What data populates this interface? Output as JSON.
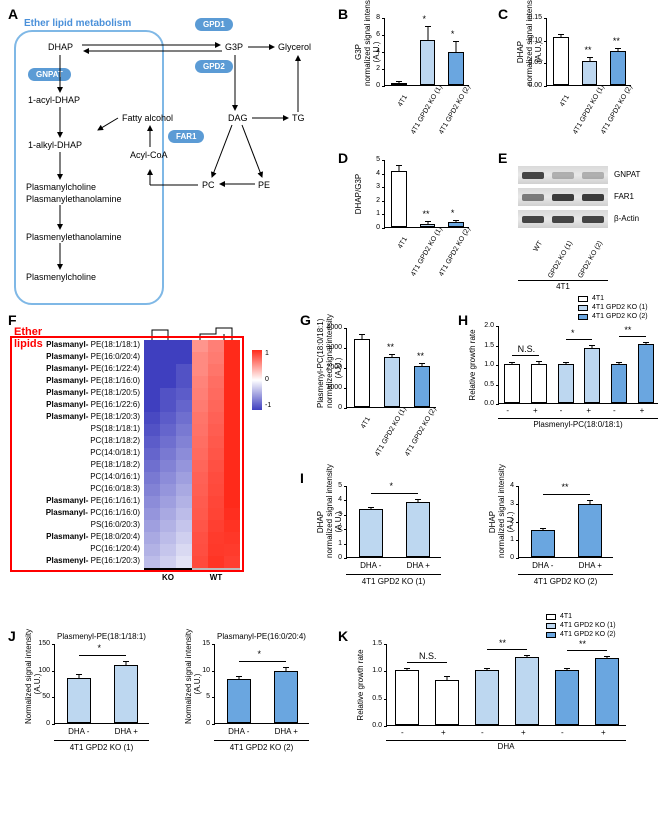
{
  "panel_labels": {
    "A": "A",
    "B": "B",
    "C": "C",
    "D": "D",
    "E": "E",
    "F": "F",
    "G": "G",
    "H": "H",
    "I": "I",
    "J": "J",
    "K": "K"
  },
  "colors": {
    "white": "#ffffff",
    "ko1": "#bdd7f0",
    "ko2": "#6aa6e0",
    "axis": "#000000",
    "enzyme": "#5b9bd5",
    "ether_border": "#7fb8e6",
    "ether_title": "#4a90d9",
    "heatmap_low": "#3f3fbf",
    "heatmap_mid": "#ffffff",
    "heatmap_high": "#ff2a1a",
    "red": "#ff0000"
  },
  "panelA": {
    "title": "Ether lipid metabolism",
    "enzymes": [
      "GPD1",
      "GPD2",
      "GNPAT",
      "FAR1"
    ],
    "nodes": [
      "DHAP",
      "G3P",
      "Glycerol",
      "1-acyl-DHAP",
      "1-alkyl-DHAP",
      "Fatty alcohol",
      "Acyl-CoA",
      "DAG",
      "TG",
      "PC",
      "PE",
      "Plasmanylcholine",
      "Plasmanylethanolamine",
      "Plasmenylethanolamine",
      "Plasmenylcholine"
    ]
  },
  "panelB": {
    "ylabel": "G3P\nnormalized signal intensity\n(A.U.)",
    "categories": [
      "4T1",
      "4T1 GPD2 KO (1)",
      "4T1 GPD2 KO (2)"
    ],
    "values": [
      0.2,
      5.3,
      3.9
    ],
    "err": [
      0.1,
      1.5,
      1.2
    ],
    "colors": [
      "#ffffff",
      "#bdd7f0",
      "#6aa6e0"
    ],
    "ylim": [
      0,
      8
    ],
    "ytick_step": 2,
    "sig": [
      "",
      "*",
      "*"
    ]
  },
  "panelC": {
    "ylabel": "DHAP\nnormalized signal intensity\n(A.U.)",
    "categories": [
      "4T1",
      "4T1 GPD2 KO (1)",
      "4T1 GPD2 KO (2)"
    ],
    "values": [
      0.105,
      0.053,
      0.075
    ],
    "err": [
      0.005,
      0.006,
      0.004
    ],
    "colors": [
      "#ffffff",
      "#bdd7f0",
      "#6aa6e0"
    ],
    "ylim": [
      0,
      0.15
    ],
    "ytick_step": 0.05,
    "sig": [
      "",
      "**",
      "**"
    ]
  },
  "panelD": {
    "ylabel": "DHAP/G3P",
    "categories": [
      "4T1",
      "4T1 GPD2 KO (1)",
      "4T1 GPD2 KO (2)"
    ],
    "values": [
      4.1,
      0.25,
      0.35
    ],
    "err": [
      0.4,
      0.1,
      0.1
    ],
    "colors": [
      "#ffffff",
      "#bdd7f0",
      "#6aa6e0"
    ],
    "ylim": [
      0,
      5
    ],
    "ytick_step": 1,
    "sig": [
      "",
      "**",
      "*"
    ]
  },
  "panelE": {
    "rows": [
      "GNPAT",
      "FAR1",
      "β-Actin"
    ],
    "lanes": [
      "WT",
      "GPD2 KO (1)",
      "GPD2 KO (2)"
    ],
    "group": "4T1",
    "intensity": [
      [
        0.9,
        0.3,
        0.3
      ],
      [
        0.6,
        0.95,
        0.95
      ],
      [
        0.9,
        0.9,
        0.9
      ]
    ]
  },
  "panelF": {
    "title": "Ether lipids",
    "row_labels": [
      "PE(18:1/18:1)",
      "PE(16:0/20:4)",
      "PE(16:1/22:4)",
      "PE(18:1/16:0)",
      "PE(18:1/20:5)",
      "PE(16:1/22:6)",
      "PE(18:1/20:3)",
      "PS(18:1/18:1)",
      "PC(18:1/18:2)",
      "PC(14:0/18:1)",
      "PE(18:1/18:2)",
      "PC(14:0/16:1)",
      "PC(16:0/18:3)",
      "PE(16:1/16:1)",
      "PC(16:1/16:0)",
      "PS(16:0/20:3)",
      "PE(18:0/20:4)",
      "PC(16:1/20:4)",
      "PE(16:1/20:3)"
    ],
    "bold_prefix": [
      true,
      true,
      true,
      true,
      true,
      true,
      true,
      false,
      false,
      false,
      false,
      false,
      false,
      true,
      true,
      false,
      true,
      false,
      true
    ],
    "prefix": "Plasmanyl-",
    "last_prefix": "Plasmenyl-",
    "groups": [
      "KO",
      "WT"
    ],
    "ko_cols": 3,
    "wt_cols": 3,
    "ko_values": [
      [
        -1.2,
        -1.1,
        -1.0
      ],
      [
        -1.2,
        -1.1,
        -1.0
      ],
      [
        -1.1,
        -1.0,
        -0.9
      ],
      [
        -1.1,
        -1.0,
        -0.9
      ],
      [
        -1.0,
        -0.9,
        -0.85
      ],
      [
        -1.0,
        -0.9,
        -0.8
      ],
      [
        -0.95,
        -0.85,
        -0.75
      ],
      [
        -0.9,
        -0.8,
        -0.7
      ],
      [
        -0.85,
        -0.75,
        -0.65
      ],
      [
        -0.8,
        -0.7,
        -0.6
      ],
      [
        -0.75,
        -0.65,
        -0.55
      ],
      [
        -0.7,
        -0.6,
        -0.5
      ],
      [
        -0.65,
        -0.55,
        -0.45
      ],
      [
        -0.6,
        -0.5,
        -0.4
      ],
      [
        -0.55,
        -0.45,
        -0.35
      ],
      [
        -0.5,
        -0.4,
        -0.3
      ],
      [
        -0.45,
        -0.35,
        -0.25
      ],
      [
        -0.4,
        -0.3,
        -0.2
      ],
      [
        -0.35,
        -0.25,
        -0.15
      ]
    ],
    "wt_values": [
      [
        0.5,
        0.6,
        1.4
      ],
      [
        0.55,
        0.62,
        1.35
      ],
      [
        0.55,
        0.65,
        1.3
      ],
      [
        0.58,
        0.68,
        1.28
      ],
      [
        0.6,
        0.7,
        1.25
      ],
      [
        0.62,
        0.72,
        1.2
      ],
      [
        0.65,
        0.74,
        1.18
      ],
      [
        0.66,
        0.76,
        1.15
      ],
      [
        0.68,
        0.78,
        1.12
      ],
      [
        0.7,
        0.8,
        1.1
      ],
      [
        0.72,
        0.82,
        1.08
      ],
      [
        0.74,
        0.84,
        1.05
      ],
      [
        0.75,
        0.85,
        1.03
      ],
      [
        0.77,
        0.87,
        1.0
      ],
      [
        0.78,
        0.88,
        0.98
      ],
      [
        0.8,
        0.9,
        0.96
      ],
      [
        0.82,
        0.92,
        0.94
      ],
      [
        0.83,
        0.93,
        0.92
      ],
      [
        0.85,
        0.95,
        0.9
      ]
    ],
    "scale": [
      -1,
      0,
      1
    ]
  },
  "panelG": {
    "ylabel": "Plasmenyl-PC(18:0/18:1)\nnormalized signal intensity\n(A.U.)",
    "categories": [
      "4T1",
      "4T1 GPD2 KO (1)",
      "4T1 GPD2 KO (2)"
    ],
    "values": [
      3400,
      2500,
      2050
    ],
    "err": [
      200,
      100,
      100
    ],
    "colors": [
      "#ffffff",
      "#bdd7f0",
      "#6aa6e0"
    ],
    "ylim": [
      0,
      4000
    ],
    "ytick_step": 1000,
    "sig": [
      "",
      "**",
      "**"
    ]
  },
  "panelH": {
    "ylabel": "Relative growth rate",
    "x_axis_title": "Plasmenyl-PC(18:0/18:1)",
    "legend": [
      "4T1",
      "4T1 GPD2 KO (1)",
      "4T1 GPD2 KO (2)"
    ],
    "legend_colors": [
      "#ffffff",
      "#bdd7f0",
      "#6aa6e0"
    ],
    "groups": [
      {
        "label": "-",
        "value": 1.0,
        "err": 0.03,
        "color": "#ffffff"
      },
      {
        "label": "+",
        "value": 1.01,
        "err": 0.04,
        "color": "#ffffff"
      },
      {
        "label": "-",
        "value": 1.0,
        "err": 0.02,
        "color": "#bdd7f0"
      },
      {
        "label": "+",
        "value": 1.42,
        "err": 0.05,
        "color": "#bdd7f0"
      },
      {
        "label": "-",
        "value": 1.0,
        "err": 0.02,
        "color": "#6aa6e0"
      },
      {
        "label": "+",
        "value": 1.52,
        "err": 0.02,
        "color": "#6aa6e0"
      }
    ],
    "ylim": [
      0,
      2.0
    ],
    "ytick_step": 0.5,
    "sig_pairs": [
      {
        "i": 0,
        "j": 1,
        "label": "N.S."
      },
      {
        "i": 2,
        "j": 3,
        "label": "*"
      },
      {
        "i": 4,
        "j": 5,
        "label": "**"
      }
    ]
  },
  "panelI": {
    "ylabel": "DHAP\nnormalized signal intensity\n(A.U.)",
    "left": {
      "categories": [
        "DHA -",
        "DHA +"
      ],
      "values": [
        3.3,
        3.85
      ],
      "err": [
        0.1,
        0.12
      ],
      "color": "#bdd7f0",
      "group": "4T1 GPD2 KO (1)",
      "ylim": [
        0,
        5
      ],
      "ytick_step": 1,
      "sig": "*"
    },
    "right": {
      "categories": [
        "DHA -",
        "DHA +"
      ],
      "values": [
        1.5,
        2.95
      ],
      "err": [
        0.05,
        0.15
      ],
      "color": "#6aa6e0",
      "group": "4T1 GPD2 KO (2)",
      "ylim": [
        0,
        4
      ],
      "ytick_step": 1,
      "sig": "**"
    }
  },
  "panelJ": {
    "left": {
      "title": "Plasmenyl-PE(18:1/18:1)",
      "ylabel": "Normalized signal intensity\n(A.U.)",
      "categories": [
        "DHA -",
        "DHA +"
      ],
      "values": [
        85,
        108
      ],
      "err": [
        5,
        7
      ],
      "color": "#bdd7f0",
      "group": "4T1 GPD2 KO (1)",
      "ylim": [
        0,
        150
      ],
      "ytick_step": 50,
      "sig": "*"
    },
    "right": {
      "title": "Plasmanyl-PE(16:0/20:4)",
      "ylabel": "Normalized signal intensity\n(A.U.)",
      "categories": [
        "DHA -",
        "DHA +"
      ],
      "values": [
        8.2,
        9.8
      ],
      "err": [
        0.4,
        0.6
      ],
      "color": "#6aa6e0",
      "group": "4T1 GPD2 KO (2)",
      "ylim": [
        0,
        15
      ],
      "ytick_step": 5,
      "sig": "*"
    }
  },
  "panelK": {
    "ylabel": "Relative growth rate",
    "x_axis_title": "DHA",
    "legend": [
      "4T1",
      "4T1 GPD2 KO (1)",
      "4T1 GPD2 KO (2)"
    ],
    "legend_colors": [
      "#ffffff",
      "#bdd7f0",
      "#6aa6e0"
    ],
    "groups": [
      {
        "label": "-",
        "value": 1.0,
        "err": 0.03,
        "color": "#ffffff"
      },
      {
        "label": "+",
        "value": 0.83,
        "err": 0.05,
        "color": "#ffffff"
      },
      {
        "label": "-",
        "value": 1.0,
        "err": 0.02,
        "color": "#bdd7f0"
      },
      {
        "label": "+",
        "value": 1.25,
        "err": 0.02,
        "color": "#bdd7f0"
      },
      {
        "label": "-",
        "value": 1.0,
        "err": 0.02,
        "color": "#6aa6e0"
      },
      {
        "label": "+",
        "value": 1.22,
        "err": 0.02,
        "color": "#6aa6e0"
      }
    ],
    "ylim": [
      0,
      1.5
    ],
    "ytick_step": 0.5,
    "sig_pairs": [
      {
        "i": 0,
        "j": 1,
        "label": "N.S."
      },
      {
        "i": 2,
        "j": 3,
        "label": "**"
      },
      {
        "i": 4,
        "j": 5,
        "label": "**"
      }
    ]
  }
}
